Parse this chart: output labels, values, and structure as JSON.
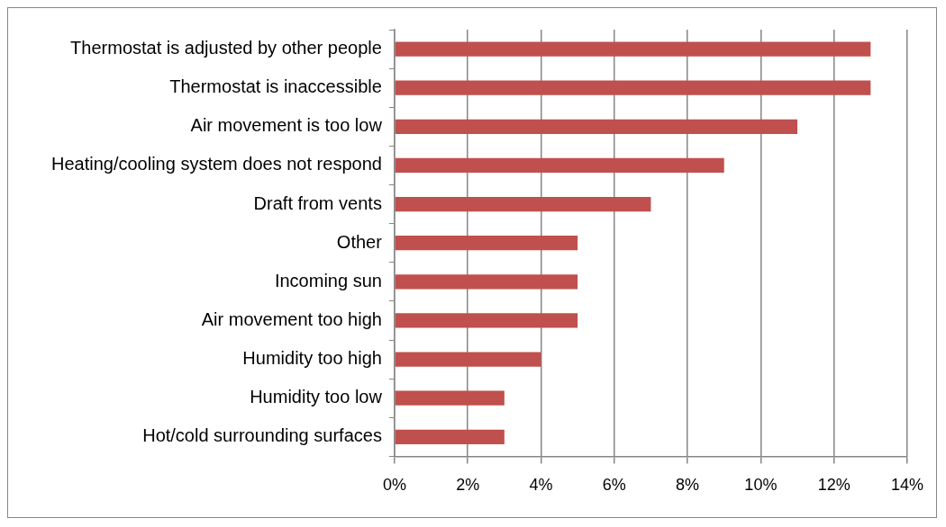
{
  "chart_data": {
    "type": "bar",
    "orientation": "horizontal",
    "categories": [
      "Thermostat is adjusted by other people",
      "Thermostat is inaccessible",
      "Air movement is too low",
      "Heating/cooling system does not respond",
      "Draft from vents",
      "Other",
      "Incoming sun",
      "Air movement too high",
      "Humidity too high",
      "Humidity too low",
      "Hot/cold surrounding surfaces"
    ],
    "values": [
      13,
      13,
      11,
      9,
      7,
      5,
      5,
      5,
      4,
      3,
      3
    ],
    "color": "#c0504d",
    "xlim": [
      0,
      14
    ],
    "xticks": [
      {
        "value": 0,
        "label": "0%"
      },
      {
        "value": 2,
        "label": "2%"
      },
      {
        "value": 4,
        "label": "4%"
      },
      {
        "value": 6,
        "label": "6%"
      },
      {
        "value": 8,
        "label": "8%"
      },
      {
        "value": 10,
        "label": "10%"
      },
      {
        "value": 12,
        "label": "12%"
      },
      {
        "value": 14,
        "label": "14%"
      }
    ],
    "grid": "x",
    "legend": false
  }
}
